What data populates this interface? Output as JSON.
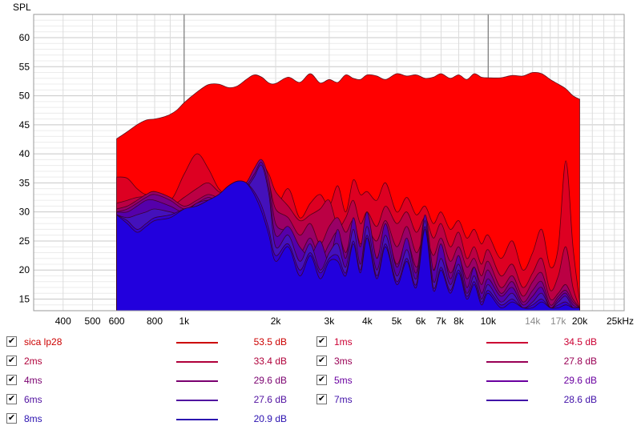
{
  "chart_data": {
    "type": "area",
    "ylabel": "SPL",
    "xunit_label": "25kHz",
    "x_scale": "log",
    "xlim": [
      320,
      28000
    ],
    "ylim": [
      13,
      64
    ],
    "y_ticks": [
      "15",
      "20",
      "25",
      "30",
      "35",
      "40",
      "45",
      "50",
      "55",
      "60"
    ],
    "x_ticks": [
      {
        "v": 400,
        "label": "400"
      },
      {
        "v": 500,
        "label": "500"
      },
      {
        "v": 600,
        "label": "600"
      },
      {
        "v": 800,
        "label": "800"
      },
      {
        "v": 1000,
        "label": "1k"
      },
      {
        "v": 2000,
        "label": "2k"
      },
      {
        "v": 3000,
        "label": "3k"
      },
      {
        "v": 4000,
        "label": "4k"
      },
      {
        "v": 5000,
        "label": "5k"
      },
      {
        "v": 6000,
        "label": "6k"
      },
      {
        "v": 7000,
        "label": "7k"
      },
      {
        "v": 8000,
        "label": "8k"
      },
      {
        "v": 10000,
        "label": "10k"
      },
      {
        "v": 14000,
        "label": "14k",
        "muted": true
      },
      {
        "v": 17000,
        "label": "17k",
        "muted": true
      },
      {
        "v": 20000,
        "label": "20k"
      }
    ],
    "series": [
      {
        "name": "sica lp28",
        "value_label": "53.5 dB",
        "color": "#ff0000",
        "text_color": "#cc0000",
        "x": [
          600,
          650,
          700,
          750,
          800,
          850,
          900,
          950,
          1000,
          1100,
          1200,
          1300,
          1400,
          1500,
          1600,
          1700,
          1800,
          1900,
          2000,
          2200,
          2400,
          2600,
          2800,
          3000,
          3200,
          3400,
          3600,
          3800,
          4000,
          4300,
          4600,
          5000,
          5400,
          5800,
          6200,
          6600,
          7000,
          7500,
          8000,
          8500,
          9000,
          9500,
          10000,
          11000,
          12000,
          13000,
          14000,
          15000,
          16000,
          17000,
          18000,
          19000,
          20000
        ],
        "y": [
          42.6,
          43.8,
          45.0,
          45.8,
          46.0,
          46.3,
          46.8,
          47.6,
          48.8,
          50.6,
          51.9,
          52.0,
          51.4,
          51.7,
          52.8,
          53.6,
          53.2,
          52.2,
          52.1,
          53.2,
          52.3,
          53.8,
          52.2,
          52.8,
          52.3,
          53.6,
          53.0,
          52.8,
          53.6,
          53.4,
          52.8,
          53.8,
          53.4,
          53.6,
          53.0,
          53.2,
          53.8,
          53.0,
          53.6,
          52.8,
          53.8,
          53.2,
          53.1,
          53.1,
          53.5,
          53.4,
          54.0,
          53.8,
          52.8,
          52.0,
          51.2,
          50.0,
          49.4
        ]
      },
      {
        "name": "1ms",
        "value_label": "34.5 dB",
        "color": "#dd0022",
        "text_color": "#cc0033",
        "x": [
          600,
          650,
          700,
          750,
          800,
          900,
          1000,
          1100,
          1200,
          1300,
          1400,
          1500,
          1600,
          1700,
          1800,
          1900,
          2000,
          2200,
          2400,
          2600,
          2800,
          3000,
          3200,
          3400,
          3600,
          3800,
          4000,
          4300,
          4600,
          5000,
          5400,
          5800,
          6200,
          6600,
          7000,
          7500,
          8000,
          8500,
          9000,
          9500,
          10000,
          11000,
          12000,
          13000,
          14000,
          15000,
          16000,
          17000,
          18000,
          19000,
          20000
        ],
        "y": [
          36.0,
          35.8,
          34.0,
          33.0,
          33.5,
          32.0,
          36.5,
          40.0,
          37.5,
          34.0,
          33.0,
          34.0,
          34.5,
          36.0,
          35.0,
          33.5,
          30.5,
          34.0,
          29.0,
          31.5,
          33.0,
          31.0,
          34.5,
          30.0,
          35.5,
          33.0,
          33.5,
          32.0,
          35.0,
          30.0,
          32.5,
          29.5,
          31.0,
          28.0,
          30.0,
          27.0,
          28.5,
          25.5,
          27.0,
          24.5,
          26.0,
          22.0,
          25.0,
          20.0,
          23.0,
          27.0,
          20.5,
          24.0,
          38.8,
          24.0,
          14.5
        ]
      },
      {
        "name": "2ms",
        "value_label": "33.4 dB",
        "color": "#bb0044",
        "text_color": "#b0003a",
        "x": [
          600,
          650,
          700,
          750,
          800,
          900,
          1000,
          1100,
          1200,
          1300,
          1400,
          1500,
          1600,
          1700,
          1800,
          1900,
          2000,
          2200,
          2400,
          2600,
          2800,
          3000,
          3200,
          3400,
          3600,
          3800,
          4000,
          4300,
          4600,
          5000,
          5400,
          5800,
          6200,
          6600,
          7000,
          7500,
          8000,
          8500,
          9000,
          9500,
          10000,
          11000,
          12000,
          13000,
          14000,
          15000,
          16000,
          17000,
          18000,
          19000,
          20000
        ],
        "y": [
          31.5,
          32.0,
          32.5,
          32.6,
          32.0,
          31.0,
          32.5,
          34.0,
          35.0,
          33.5,
          33.0,
          34.5,
          35.0,
          36.0,
          38.0,
          36.5,
          33.5,
          31.0,
          28.5,
          29.5,
          30.5,
          32.0,
          27.5,
          29.0,
          32.0,
          28.0,
          30.0,
          27.5,
          31.0,
          28.0,
          30.0,
          26.5,
          29.0,
          25.5,
          28.0,
          24.0,
          26.5,
          22.0,
          24.0,
          21.0,
          23.5,
          19.0,
          21.0,
          17.0,
          19.5,
          22.0,
          16.5,
          19.0,
          24.0,
          17.0,
          13.5
        ]
      },
      {
        "name": "3ms",
        "value_label": "27.8 dB",
        "color": "#990066",
        "text_color": "#990055",
        "x": [
          600,
          650,
          700,
          750,
          800,
          900,
          1000,
          1100,
          1200,
          1300,
          1400,
          1500,
          1600,
          1700,
          1800,
          1900,
          2000,
          2200,
          2400,
          2600,
          2800,
          3000,
          3200,
          3400,
          3600,
          3800,
          4000,
          4300,
          4600,
          5000,
          5400,
          5800,
          6200,
          6600,
          7000,
          7500,
          8000,
          8500,
          9000,
          9500,
          10000,
          11000,
          12000,
          13000,
          14000,
          15000,
          16000,
          17000,
          18000,
          19000,
          20000
        ],
        "y": [
          30.5,
          31.0,
          32.0,
          33.0,
          33.5,
          32.5,
          31.0,
          32.0,
          33.0,
          32.5,
          33.0,
          34.0,
          34.5,
          35.5,
          37.0,
          35.0,
          30.5,
          29.0,
          26.0,
          28.0,
          24.5,
          27.5,
          29.0,
          26.5,
          28.5,
          24.5,
          27.0,
          25.0,
          28.5,
          24.0,
          27.5,
          23.0,
          26.0,
          22.5,
          25.5,
          21.5,
          24.0,
          20.5,
          22.0,
          19.0,
          21.5,
          17.0,
          19.0,
          15.5,
          18.0,
          19.5,
          15.0,
          16.0,
          17.5,
          15.0,
          13.5
        ]
      },
      {
        "name": "4ms",
        "value_label": "29.6 dB",
        "color": "#770088",
        "text_color": "#7a006f",
        "x": [
          600,
          650,
          700,
          750,
          800,
          900,
          1000,
          1100,
          1200,
          1300,
          1400,
          1500,
          1600,
          1700,
          1800,
          1900,
          2000,
          2200,
          2400,
          2600,
          2800,
          3000,
          3200,
          3400,
          3600,
          3800,
          4000,
          4300,
          4600,
          5000,
          5400,
          5800,
          6200,
          6600,
          7000,
          7500,
          8000,
          8500,
          9000,
          9500,
          10000,
          11000,
          12000,
          13000,
          14000,
          15000,
          16000,
          17000,
          18000,
          19000,
          20000
        ],
        "y": [
          30.0,
          30.5,
          31.5,
          32.5,
          33.0,
          32.0,
          30.5,
          31.5,
          32.5,
          32.0,
          33.5,
          34.5,
          35.0,
          37.5,
          39.0,
          35.5,
          28.0,
          26.5,
          23.0,
          25.5,
          22.0,
          24.5,
          26.5,
          23.0,
          27.0,
          22.0,
          25.5,
          22.0,
          26.5,
          21.0,
          25.0,
          20.5,
          24.0,
          20.0,
          23.5,
          19.5,
          22.0,
          18.5,
          20.5,
          17.5,
          20.0,
          16.0,
          18.0,
          14.5,
          16.5,
          18.0,
          14.0,
          15.5,
          16.5,
          14.5,
          13.5
        ]
      },
      {
        "name": "5ms",
        "value_label": "29.6 dB",
        "color": "#5500aa",
        "text_color": "#6a00a0",
        "x": [
          600,
          650,
          700,
          750,
          800,
          900,
          1000,
          1100,
          1200,
          1300,
          1400,
          1500,
          1600,
          1700,
          1800,
          1900,
          2000,
          2200,
          2400,
          2600,
          2800,
          3000,
          3200,
          3400,
          3600,
          3800,
          4000,
          4300,
          4600,
          5000,
          5400,
          5800,
          6200,
          6600,
          7000,
          7500,
          8000,
          8500,
          9000,
          9500,
          10000,
          11000,
          12000,
          13000,
          14000,
          15000,
          16000,
          17000,
          18000,
          19000,
          20000
        ],
        "y": [
          30.0,
          30.0,
          31.0,
          32.0,
          32.0,
          31.0,
          30.0,
          31.5,
          32.0,
          31.5,
          33.0,
          34.0,
          34.5,
          36.5,
          38.5,
          34.0,
          26.0,
          27.5,
          24.0,
          22.5,
          25.0,
          21.5,
          27.0,
          22.0,
          29.0,
          24.0,
          30.0,
          22.0,
          28.0,
          20.5,
          25.5,
          19.5,
          29.5,
          20.0,
          24.5,
          18.5,
          22.5,
          17.0,
          20.5,
          16.0,
          18.5,
          15.5,
          17.0,
          14.0,
          15.5,
          17.0,
          13.5,
          15.0,
          16.0,
          14.0,
          13.5
        ]
      },
      {
        "name": "6ms",
        "value_label": "27.6 dB",
        "color": "#4411bb",
        "text_color": "#5010a0",
        "x": [
          600,
          650,
          700,
          750,
          800,
          900,
          1000,
          1100,
          1200,
          1300,
          1400,
          1500,
          1600,
          1700,
          1800,
          1900,
          2000,
          2200,
          2400,
          2600,
          2800,
          3000,
          3200,
          3400,
          3600,
          3800,
          4000,
          4300,
          4600,
          5000,
          5400,
          5800,
          6200,
          6600,
          7000,
          7500,
          8000,
          8500,
          9000,
          9500,
          10000,
          11000,
          12000,
          13000,
          14000,
          15000,
          16000,
          17000,
          18000,
          19000,
          20000
        ],
        "y": [
          29.5,
          29.0,
          29.5,
          30.0,
          30.5,
          30.0,
          29.5,
          31.0,
          31.5,
          31.0,
          32.5,
          33.0,
          34.0,
          36.0,
          38.0,
          33.0,
          24.0,
          26.0,
          21.5,
          24.5,
          20.0,
          23.0,
          24.5,
          20.5,
          27.0,
          21.0,
          27.5,
          20.0,
          26.0,
          19.0,
          23.5,
          18.5,
          28.5,
          18.0,
          22.0,
          17.5,
          21.0,
          16.0,
          19.0,
          15.0,
          17.5,
          14.5,
          16.0,
          13.5,
          14.5,
          16.0,
          13.5,
          14.5,
          15.5,
          13.5,
          13.5
        ]
      },
      {
        "name": "7ms",
        "value_label": "28.6 dB",
        "color": "#3300cc",
        "text_color": "#4010a8",
        "x": [
          600,
          650,
          700,
          750,
          800,
          900,
          1000,
          1100,
          1200,
          1300,
          1400,
          1500,
          1600,
          1700,
          1800,
          1900,
          2000,
          2200,
          2400,
          2600,
          2800,
          3000,
          3200,
          3400,
          3600,
          3800,
          4000,
          4300,
          4600,
          5000,
          5400,
          5800,
          6200,
          6600,
          7000,
          7500,
          8000,
          8500,
          9000,
          9500,
          10000,
          11000,
          12000,
          13000,
          14000,
          15000,
          16000,
          17000,
          18000,
          19000,
          20000
        ],
        "y": [
          29.5,
          28.5,
          27.0,
          28.0,
          29.0,
          29.5,
          30.5,
          31.0,
          32.0,
          33.0,
          34.5,
          35.3,
          35.0,
          33.5,
          31.0,
          27.0,
          22.5,
          24.5,
          20.0,
          23.0,
          19.5,
          22.0,
          22.5,
          19.5,
          25.0,
          20.0,
          26.0,
          19.0,
          24.5,
          18.0,
          22.0,
          17.5,
          27.5,
          17.0,
          20.5,
          16.5,
          20.0,
          15.5,
          18.0,
          14.5,
          16.5,
          14.0,
          15.0,
          13.5,
          14.0,
          15.0,
          13.5,
          14.0,
          14.5,
          13.5,
          13.5
        ]
      },
      {
        "name": "8ms",
        "value_label": "20.9 dB",
        "color": "#2200dd",
        "text_color": "#2a10b0",
        "x": [
          600,
          650,
          700,
          750,
          800,
          900,
          1000,
          1100,
          1200,
          1300,
          1400,
          1500,
          1600,
          1700,
          1800,
          1900,
          2000,
          2200,
          2400,
          2600,
          2800,
          3000,
          3200,
          3400,
          3600,
          3800,
          4000,
          4300,
          4600,
          5000,
          5400,
          5800,
          6200,
          6600,
          7000,
          7500,
          8000,
          8500,
          9000,
          9500,
          10000,
          11000,
          12000,
          13000,
          14000,
          15000,
          16000,
          17000,
          18000,
          19000,
          20000
        ],
        "y": [
          29.5,
          28.0,
          26.5,
          27.5,
          28.5,
          29.0,
          30.5,
          31.0,
          32.0,
          33.0,
          34.5,
          35.3,
          35.0,
          33.0,
          30.0,
          26.0,
          21.5,
          24.0,
          19.0,
          22.5,
          18.5,
          21.5,
          21.5,
          19.0,
          24.5,
          19.5,
          25.5,
          18.5,
          24.0,
          17.5,
          21.5,
          17.0,
          27.0,
          16.5,
          20.0,
          16.0,
          19.5,
          15.0,
          17.5,
          14.0,
          16.0,
          13.5,
          14.5,
          13.5,
          13.5,
          14.5,
          13.5,
          13.5,
          14.0,
          13.5,
          13.5
        ]
      }
    ]
  }
}
